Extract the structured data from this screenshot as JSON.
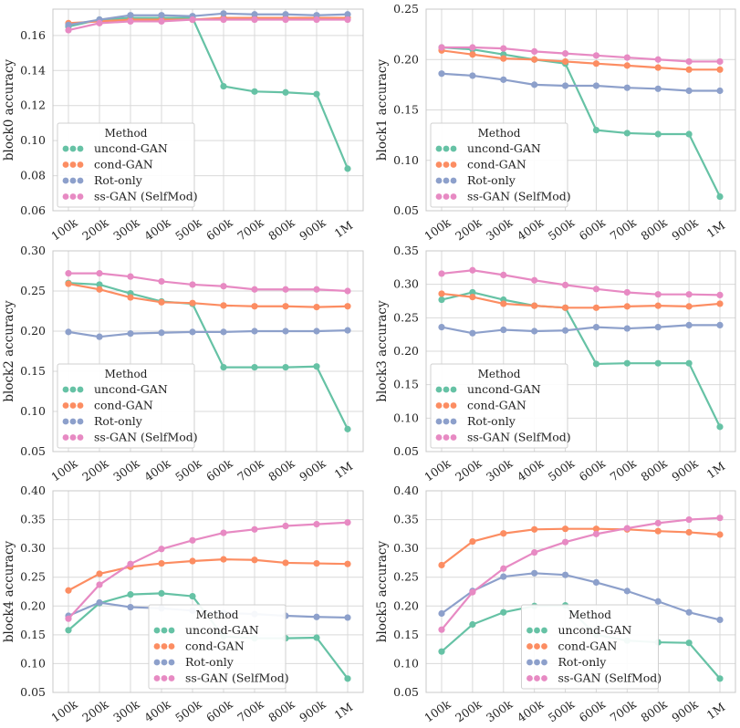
{
  "colors": {
    "uncond-GAN": "#66c2a5",
    "cond-GAN": "#fc8d62",
    "Rot-only": "#8da0cb",
    "ss-GAN (SelfMod)": "#e78ac3",
    "grid": "#d9d9d9",
    "axis": "#333333"
  },
  "chart_data": [
    {
      "type": "line",
      "categories": [
        "100k",
        "200k",
        "300k",
        "400k",
        "500k",
        "600k",
        "700k",
        "800k",
        "900k",
        "1M"
      ],
      "ylabel": "block0 accuracy",
      "ylim": [
        0.06,
        0.175
      ],
      "yticks": [
        "0.06",
        "0.08",
        "0.10",
        "0.12",
        "0.14",
        "0.16"
      ],
      "legend": {
        "title": "Method",
        "position": "lower-left"
      },
      "series": [
        {
          "name": "uncond-GAN",
          "values": [
            0.165,
            0.169,
            0.17,
            0.17,
            0.17,
            0.131,
            0.128,
            0.1275,
            0.1265,
            0.084
          ]
        },
        {
          "name": "cond-GAN",
          "values": [
            0.167,
            0.168,
            0.169,
            0.169,
            0.169,
            0.17,
            0.17,
            0.17,
            0.17,
            0.17
          ]
        },
        {
          "name": "Rot-only",
          "values": [
            0.166,
            0.169,
            0.1715,
            0.1715,
            0.171,
            0.1725,
            0.172,
            0.172,
            0.1715,
            0.172
          ]
        },
        {
          "name": "ss-GAN (SelfMod)",
          "values": [
            0.163,
            0.167,
            0.168,
            0.168,
            0.169,
            0.169,
            0.169,
            0.169,
            0.169,
            0.169
          ]
        }
      ]
    },
    {
      "type": "line",
      "categories": [
        "100k",
        "200k",
        "300k",
        "400k",
        "500k",
        "600k",
        "700k",
        "800k",
        "900k",
        "1M"
      ],
      "ylabel": "block1 accuracy",
      "ylim": [
        0.05,
        0.25
      ],
      "yticks": [
        "0.05",
        "0.10",
        "0.15",
        "0.20",
        "0.25"
      ],
      "legend": {
        "title": "Method",
        "position": "lower-left"
      },
      "series": [
        {
          "name": "uncond-GAN",
          "values": [
            0.212,
            0.21,
            0.205,
            0.2,
            0.196,
            0.13,
            0.127,
            0.126,
            0.126,
            0.064
          ]
        },
        {
          "name": "cond-GAN",
          "values": [
            0.209,
            0.205,
            0.201,
            0.2,
            0.198,
            0.196,
            0.194,
            0.192,
            0.19,
            0.19
          ]
        },
        {
          "name": "Rot-only",
          "values": [
            0.186,
            0.184,
            0.18,
            0.175,
            0.174,
            0.174,
            0.172,
            0.171,
            0.169,
            0.169
          ]
        },
        {
          "name": "ss-GAN (SelfMod)",
          "values": [
            0.212,
            0.212,
            0.211,
            0.208,
            0.206,
            0.204,
            0.202,
            0.2,
            0.198,
            0.198
          ]
        }
      ]
    },
    {
      "type": "line",
      "categories": [
        "100k",
        "200k",
        "300k",
        "400k",
        "500k",
        "600k",
        "700k",
        "800k",
        "900k",
        "1M"
      ],
      "ylabel": "block2 accuracy",
      "ylim": [
        0.05,
        0.3
      ],
      "yticks": [
        "0.05",
        "0.10",
        "0.15",
        "0.20",
        "0.25",
        "0.30"
      ],
      "legend": {
        "title": "Method",
        "position": "lower-left"
      },
      "series": [
        {
          "name": "uncond-GAN",
          "values": [
            0.26,
            0.258,
            0.247,
            0.237,
            0.234,
            0.155,
            0.155,
            0.155,
            0.156,
            0.078
          ]
        },
        {
          "name": "cond-GAN",
          "values": [
            0.259,
            0.252,
            0.242,
            0.236,
            0.235,
            0.232,
            0.231,
            0.231,
            0.23,
            0.231
          ]
        },
        {
          "name": "Rot-only",
          "values": [
            0.199,
            0.193,
            0.197,
            0.198,
            0.199,
            0.199,
            0.2,
            0.2,
            0.2,
            0.201
          ]
        },
        {
          "name": "ss-GAN (SelfMod)",
          "values": [
            0.272,
            0.272,
            0.268,
            0.262,
            0.258,
            0.256,
            0.252,
            0.252,
            0.252,
            0.25
          ]
        }
      ]
    },
    {
      "type": "line",
      "categories": [
        "100k",
        "200k",
        "300k",
        "400k",
        "500k",
        "600k",
        "700k",
        "800k",
        "900k",
        "1M"
      ],
      "ylabel": "block3 accuracy",
      "ylim": [
        0.05,
        0.35
      ],
      "yticks": [
        "0.05",
        "0.10",
        "0.15",
        "0.20",
        "0.25",
        "0.30",
        "0.35"
      ],
      "legend": {
        "title": "Method",
        "position": "lower-left"
      },
      "series": [
        {
          "name": "uncond-GAN",
          "values": [
            0.277,
            0.288,
            0.277,
            0.268,
            0.265,
            0.181,
            0.182,
            0.182,
            0.182,
            0.087
          ]
        },
        {
          "name": "cond-GAN",
          "values": [
            0.286,
            0.281,
            0.271,
            0.268,
            0.265,
            0.265,
            0.267,
            0.268,
            0.267,
            0.271
          ]
        },
        {
          "name": "Rot-only",
          "values": [
            0.236,
            0.227,
            0.232,
            0.23,
            0.231,
            0.236,
            0.234,
            0.236,
            0.239,
            0.239
          ]
        },
        {
          "name": "ss-GAN (SelfMod)",
          "values": [
            0.316,
            0.321,
            0.314,
            0.306,
            0.299,
            0.293,
            0.288,
            0.285,
            0.285,
            0.284
          ]
        }
      ]
    },
    {
      "type": "line",
      "categories": [
        "100k",
        "200k",
        "300k",
        "400k",
        "500k",
        "600k",
        "700k",
        "800k",
        "900k",
        "1M"
      ],
      "ylabel": "block4 accuracy",
      "ylim": [
        0.05,
        0.4
      ],
      "yticks": [
        "0.05",
        "0.10",
        "0.15",
        "0.20",
        "0.25",
        "0.30",
        "0.35",
        "0.40"
      ],
      "legend": {
        "title": "Method",
        "position": "lower-center"
      },
      "series": [
        {
          "name": "uncond-GAN",
          "values": [
            0.158,
            0.205,
            0.22,
            0.222,
            0.217,
            0.147,
            0.144,
            0.144,
            0.145,
            0.074
          ]
        },
        {
          "name": "cond-GAN",
          "values": [
            0.227,
            0.256,
            0.268,
            0.274,
            0.278,
            0.281,
            0.28,
            0.275,
            0.274,
            0.273
          ]
        },
        {
          "name": "Rot-only",
          "values": [
            0.183,
            0.206,
            0.198,
            0.196,
            0.192,
            0.188,
            0.186,
            0.183,
            0.181,
            0.18
          ]
        },
        {
          "name": "ss-GAN (SelfMod)",
          "values": [
            0.178,
            0.237,
            0.273,
            0.299,
            0.314,
            0.327,
            0.333,
            0.339,
            0.342,
            0.345
          ]
        }
      ]
    },
    {
      "type": "line",
      "categories": [
        "100k",
        "200k",
        "300k",
        "400k",
        "500k",
        "600k",
        "700k",
        "800k",
        "900k",
        "1M"
      ],
      "ylabel": "block5 accuracy",
      "ylim": [
        0.05,
        0.4
      ],
      "yticks": [
        "0.05",
        "0.10",
        "0.15",
        "0.20",
        "0.25",
        "0.30",
        "0.35",
        "0.40"
      ],
      "legend": {
        "title": "Method",
        "position": "lower-center"
      },
      "series": [
        {
          "name": "uncond-GAN",
          "values": [
            0.121,
            0.168,
            0.189,
            0.2,
            0.201,
            0.15,
            0.14,
            0.137,
            0.136,
            0.074
          ]
        },
        {
          "name": "cond-GAN",
          "values": [
            0.271,
            0.312,
            0.326,
            0.333,
            0.334,
            0.334,
            0.333,
            0.33,
            0.328,
            0.324
          ]
        },
        {
          "name": "Rot-only",
          "values": [
            0.187,
            0.226,
            0.251,
            0.257,
            0.254,
            0.241,
            0.226,
            0.208,
            0.189,
            0.176
          ]
        },
        {
          "name": "ss-GAN (SelfMod)",
          "values": [
            0.159,
            0.224,
            0.265,
            0.293,
            0.311,
            0.325,
            0.335,
            0.344,
            0.35,
            0.353
          ]
        }
      ]
    }
  ]
}
